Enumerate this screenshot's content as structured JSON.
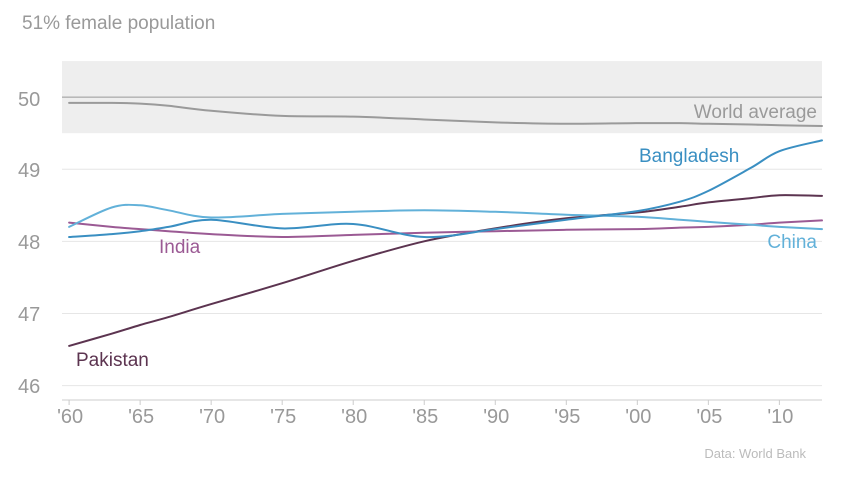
{
  "chart_data": {
    "type": "line",
    "title": "51% female population",
    "source": "Data: World Bank",
    "x": [
      1960,
      1963,
      1965,
      1967,
      1970,
      1975,
      1980,
      1985,
      1990,
      1995,
      2000,
      2003,
      2005,
      2008,
      2010,
      2013
    ],
    "xlim": [
      1959.5,
      2013
    ],
    "ylim": [
      45.8,
      51.0
    ],
    "x_ticks": [
      1960,
      1965,
      1970,
      1975,
      1980,
      1985,
      1990,
      1995,
      2000,
      2005,
      2010
    ],
    "x_tick_labels": [
      "'60",
      "'65",
      "'70",
      "'75",
      "'80",
      "'85",
      "'90",
      "'95",
      "'00",
      "'05",
      "'10"
    ],
    "y_ticks": [
      46,
      47,
      48,
      49,
      50
    ],
    "y_tick_labels": [
      "46",
      "47",
      "48",
      "49",
      "50"
    ],
    "grid": true,
    "band": {
      "y_from": 49.5,
      "y_to": 50.5,
      "color": "#eeeeee"
    },
    "reference_line": {
      "y": 50,
      "color": "#999999"
    },
    "series": [
      {
        "name": "World average",
        "color": "#9a9a9a",
        "values": [
          49.92,
          49.92,
          49.91,
          49.88,
          49.81,
          49.74,
          49.73,
          49.69,
          49.65,
          49.63,
          49.64,
          49.64,
          49.63,
          49.62,
          49.61,
          49.6
        ]
      },
      {
        "name": "Bangladesh",
        "color": "#3a8fc2",
        "values": [
          48.06,
          48.1,
          48.14,
          48.2,
          48.3,
          48.18,
          48.24,
          48.06,
          48.17,
          48.3,
          48.42,
          48.55,
          48.7,
          49.02,
          49.25,
          49.4
        ]
      },
      {
        "name": "China",
        "color": "#62b1d9",
        "values": [
          48.2,
          48.47,
          48.5,
          48.43,
          48.33,
          48.38,
          48.41,
          48.43,
          48.41,
          48.37,
          48.34,
          48.3,
          48.27,
          48.23,
          48.2,
          48.17
        ]
      },
      {
        "name": "India",
        "color": "#9b5a94",
        "values": [
          48.26,
          48.2,
          48.17,
          48.14,
          48.1,
          48.06,
          48.09,
          48.12,
          48.14,
          48.16,
          48.17,
          48.19,
          48.2,
          48.23,
          48.26,
          48.29
        ]
      },
      {
        "name": "Pakistan",
        "color": "#5c3450",
        "values": [
          46.55,
          46.72,
          46.84,
          46.95,
          47.13,
          47.42,
          47.73,
          48.0,
          48.18,
          48.32,
          48.4,
          48.48,
          48.54,
          48.6,
          48.64,
          48.63
        ]
      }
    ],
    "annotations": [
      "World average",
      "Bangladesh",
      "China",
      "India",
      "Pakistan"
    ]
  }
}
